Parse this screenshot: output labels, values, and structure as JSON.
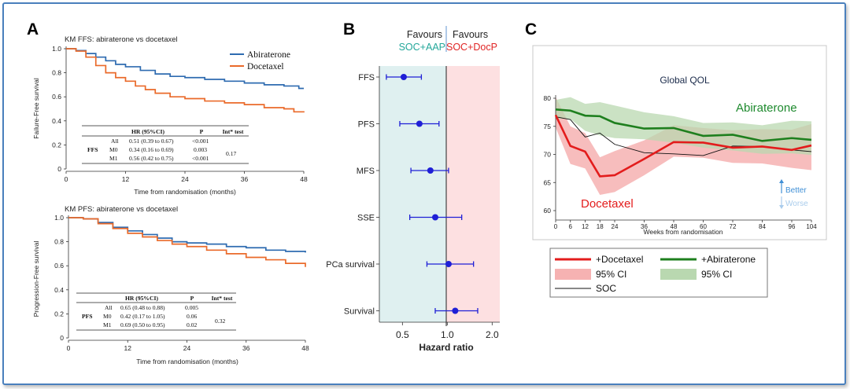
{
  "panels": {
    "A": {
      "letter": "A"
    },
    "B": {
      "letter": "B"
    },
    "C": {
      "letter": "C"
    }
  },
  "colors": {
    "abiraterone_blue": "#2e6bb0",
    "docetaxel_orange": "#ea6a2a",
    "forest_marker": "#1f1fd6",
    "soc_aap_teal": "#23a79a",
    "soc_docp_red": "#e02424",
    "qol_red": "#e31c1c",
    "qol_green": "#1e7f1e",
    "better_blue": "#3f8fd6",
    "frame_blue": "#4a80bd"
  },
  "km_table_ffs": {
    "header": [
      "HR (95%CI)",
      "P",
      "Int* test"
    ],
    "group": "FFS",
    "rows": [
      {
        "sub": "All",
        "hr": "0.51 (0.39 to 0.67)",
        "p": "<0.001"
      },
      {
        "sub": "M0",
        "hr": "0.34 (0.16 to 0.69)",
        "p": "0.003"
      },
      {
        "sub": "M1",
        "hr": "0.56 (0.42 to 0.75)",
        "p": "<0.001"
      }
    ],
    "int": "0.17"
  },
  "km_table_pfs": {
    "header": [
      "HR (95%CI)",
      "P",
      "Int* test"
    ],
    "group": "PFS",
    "rows": [
      {
        "sub": "All",
        "hr": "0.65 (0.48 to 0.88)",
        "p": "0.005"
      },
      {
        "sub": "M0",
        "hr": "0.42 (0.17 to 1.05)",
        "p": "0.06"
      },
      {
        "sub": "M1",
        "hr": "0.69 (0.50 to 0.95)",
        "p": "0.02"
      }
    ],
    "int": "0.32"
  },
  "chart_data": [
    {
      "id": "A1",
      "type": "line",
      "title": "KM FFS: abiraterone vs docetaxel",
      "xlabel": "Time from randomisation (months)",
      "ylabel": "Failure-Free survival",
      "xlim": [
        0,
        48
      ],
      "ylim": [
        0,
        1
      ],
      "xticks": [
        0,
        12,
        24,
        36,
        48
      ],
      "yticks": [
        0,
        0.2,
        0.4,
        0.6,
        0.8,
        1.0
      ],
      "ytick_labels": [
        "0",
        "0.2",
        "0.4",
        "0.6",
        "0.8",
        "1.0"
      ],
      "legend": "top-right",
      "series": [
        {
          "name": "Abiraterone",
          "color": "#2e6bb0",
          "x": [
            0,
            2,
            4,
            6,
            8,
            10,
            12,
            15,
            18,
            21,
            24,
            28,
            32,
            36,
            40,
            44,
            47,
            48
          ],
          "y": [
            1.0,
            0.985,
            0.96,
            0.93,
            0.9,
            0.87,
            0.85,
            0.82,
            0.79,
            0.77,
            0.76,
            0.745,
            0.73,
            0.715,
            0.7,
            0.69,
            0.67,
            0.67
          ]
        },
        {
          "name": "Docetaxel",
          "color": "#ea6a2a",
          "x": [
            0,
            2,
            4,
            6,
            8,
            10,
            12,
            14,
            16,
            18,
            21,
            24,
            28,
            32,
            36,
            40,
            44,
            46,
            48
          ],
          "y": [
            1.0,
            0.98,
            0.93,
            0.86,
            0.8,
            0.76,
            0.73,
            0.69,
            0.66,
            0.63,
            0.6,
            0.585,
            0.565,
            0.55,
            0.535,
            0.51,
            0.5,
            0.475,
            0.47
          ]
        }
      ]
    },
    {
      "id": "A2",
      "type": "line",
      "title": "KM PFS: abiraterone vs docetaxel",
      "xlabel": "Time from randomisation (months)",
      "ylabel": "Progression-Free survival",
      "xlim": [
        0,
        48
      ],
      "ylim": [
        0,
        1
      ],
      "xticks": [
        0,
        12,
        24,
        36,
        48
      ],
      "yticks": [
        0,
        0.2,
        0.4,
        0.6,
        0.8,
        1.0
      ],
      "ytick_labels": [
        "0",
        "0.2",
        "0.4",
        "0.6",
        "0.8",
        "1.0"
      ],
      "series": [
        {
          "name": "Abiraterone",
          "color": "#2e6bb0",
          "x": [
            0,
            3,
            6,
            9,
            12,
            15,
            18,
            21,
            24,
            28,
            32,
            36,
            40,
            44,
            48
          ],
          "y": [
            1.0,
            0.99,
            0.96,
            0.92,
            0.89,
            0.86,
            0.83,
            0.8,
            0.79,
            0.78,
            0.76,
            0.75,
            0.73,
            0.72,
            0.71
          ]
        },
        {
          "name": "Docetaxel",
          "color": "#ea6a2a",
          "x": [
            0,
            3,
            6,
            9,
            12,
            15,
            18,
            21,
            24,
            28,
            32,
            36,
            40,
            44,
            48
          ],
          "y": [
            1.0,
            0.99,
            0.95,
            0.91,
            0.87,
            0.84,
            0.81,
            0.78,
            0.76,
            0.73,
            0.7,
            0.67,
            0.65,
            0.62,
            0.59
          ]
        }
      ]
    },
    {
      "id": "B",
      "type": "scatter",
      "title": "",
      "header_left": [
        "Favours",
        "SOC+AAP"
      ],
      "header_right": [
        "Favours",
        "SOC+DocP"
      ],
      "xlabel": "Hazard ratio",
      "xscale": "log",
      "xlim": [
        0.35,
        2.25
      ],
      "xticks": [
        0.5,
        1.0,
        2.0
      ],
      "xtick_labels": [
        "0.5",
        "1.0",
        "2.0"
      ],
      "categories": [
        "FFS",
        "PFS",
        "MFS",
        "SSE",
        "PCa survival",
        "Survival"
      ],
      "values": [
        0.51,
        0.65,
        0.77,
        0.83,
        1.02,
        1.13
      ],
      "ci_low": [
        0.39,
        0.48,
        0.57,
        0.56,
        0.73,
        0.83
      ],
      "ci_high": [
        0.67,
        0.88,
        1.02,
        1.25,
        1.5,
        1.6
      ]
    },
    {
      "id": "C",
      "type": "area",
      "title": "Global QOL",
      "xlabel": "Weeks from randomisation",
      "ylabel": "",
      "xlim": [
        0,
        104
      ],
      "ylim": [
        58,
        81
      ],
      "xticks": [
        0,
        6,
        12,
        18,
        24,
        36,
        48,
        60,
        72,
        84,
        96,
        104
      ],
      "yticks": [
        60,
        65,
        70,
        75,
        80
      ],
      "annotations": {
        "abiraterone": "Abiraterone",
        "docetaxel": "Docetaxel",
        "better": "Better",
        "worse": "Worse"
      },
      "x": [
        0,
        6,
        12,
        18,
        24,
        36,
        48,
        60,
        72,
        84,
        96,
        104
      ],
      "series": [
        {
          "name": "+Docetaxel",
          "color": "#e31c1c",
          "values": [
            77,
            71.5,
            70.5,
            66.1,
            66.3,
            69.2,
            72.2,
            72.1,
            71.2,
            71.4,
            70.8,
            71.6
          ]
        },
        {
          "name": "95% CI",
          "band_for": "+Docetaxel",
          "color": "#f6b2b2",
          "lower": [
            74.8,
            68.3,
            67.5,
            62.8,
            63.3,
            66.3,
            69.6,
            69.4,
            68.5,
            68.4,
            67.6,
            67.2
          ],
          "upper": [
            80.2,
            75,
            73.8,
            69.5,
            70.6,
            72.5,
            75.2,
            74.7,
            74.3,
            74.5,
            74.4,
            75.4
          ]
        },
        {
          "name": "+Abiraterone",
          "color": "#1e7f1e",
          "values": [
            78,
            77.8,
            76.9,
            76.8,
            75.6,
            74.6,
            74.7,
            73.3,
            73.5,
            72.4,
            72.9,
            72.6
          ]
        },
        {
          "name": "95% CI",
          "band_for": "+Abiraterone",
          "color": "#b9d8b0",
          "lower": [
            76.4,
            76.3,
            74.2,
            73.4,
            72.9,
            72.7,
            72.1,
            71.2,
            70.7,
            70.1,
            70.2,
            69.9
          ],
          "upper": [
            79.7,
            80.2,
            79,
            79.3,
            78.7,
            77.5,
            76.8,
            75.6,
            75.7,
            75.2,
            76,
            75.9
          ]
        },
        {
          "name": "SOC",
          "color": "#111111",
          "values": [
            76.7,
            76.2,
            73.1,
            73.8,
            71.8,
            70.3,
            70.1,
            69.8,
            71.5,
            71.4,
            70.8,
            70.5
          ]
        }
      ],
      "legend": [
        {
          "label": "+Docetaxel",
          "kind": "line",
          "color": "#e31c1c"
        },
        {
          "label": "+Abiraterone",
          "kind": "line",
          "color": "#1e7f1e"
        },
        {
          "label": "95% CI",
          "kind": "patch",
          "color": "#f6b2b2"
        },
        {
          "label": "95% CI",
          "kind": "patch",
          "color": "#b9d8b0"
        },
        {
          "label": "SOC",
          "kind": "thin",
          "color": "#111111"
        }
      ]
    }
  ]
}
